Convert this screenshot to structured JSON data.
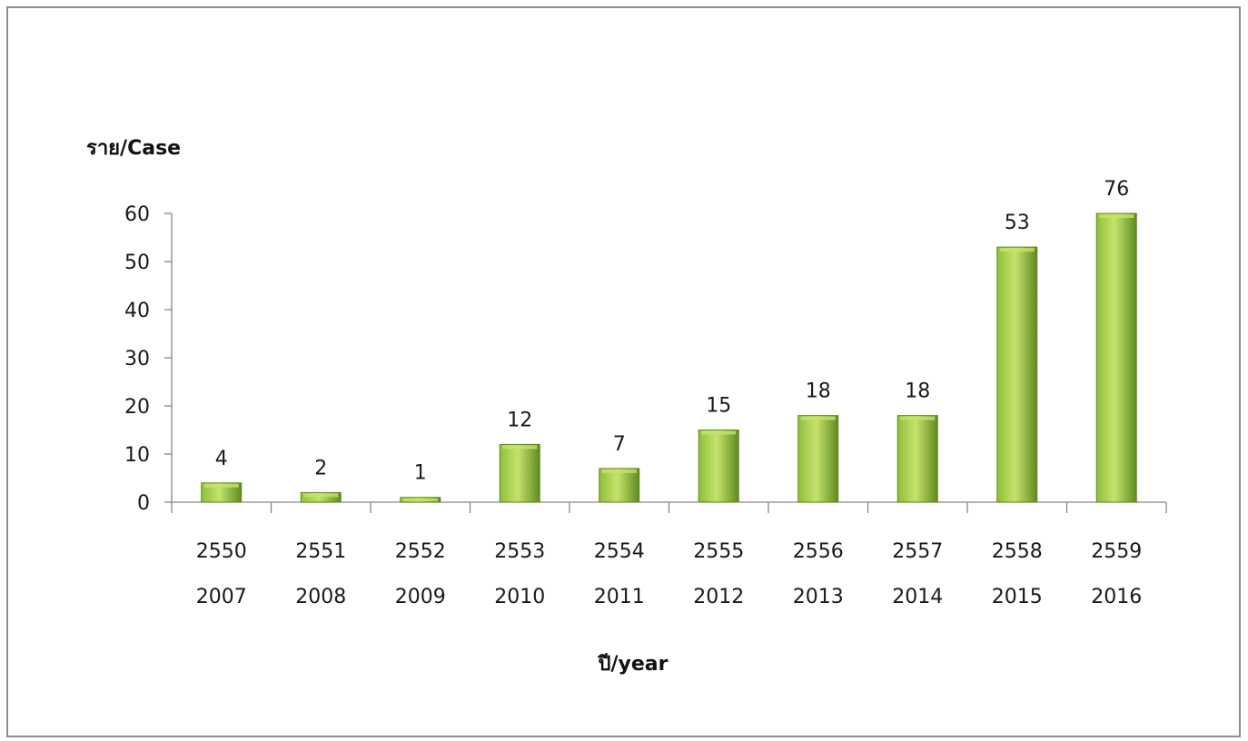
{
  "chart_data": {
    "type": "bar",
    "ylabel": "ราย/Case",
    "xlabel": "ปี/year",
    "ylim": [
      0,
      60
    ],
    "yticks": [
      0,
      10,
      20,
      30,
      40,
      50,
      60
    ],
    "grid": false,
    "categories": [
      [
        "2550",
        "2007"
      ],
      [
        "2551",
        "2008"
      ],
      [
        "2552",
        "2009"
      ],
      [
        "2553",
        "2010"
      ],
      [
        "2554",
        "2011"
      ],
      [
        "2555",
        "2012"
      ],
      [
        "2556",
        "2013"
      ],
      [
        "2557",
        "2014"
      ],
      [
        "2558",
        "2015"
      ],
      [
        "2559",
        "2016"
      ]
    ],
    "values": [
      4,
      2,
      1,
      12,
      7,
      15,
      18,
      18,
      53,
      76
    ],
    "data_labels": [
      "4",
      "2",
      "1",
      "12",
      "7",
      "15",
      "18",
      "18",
      "53",
      "76"
    ],
    "bar_color": "#8fbf3a",
    "bar_color_light": "#c5e36c",
    "bar_color_dark": "#5f8a1f"
  }
}
